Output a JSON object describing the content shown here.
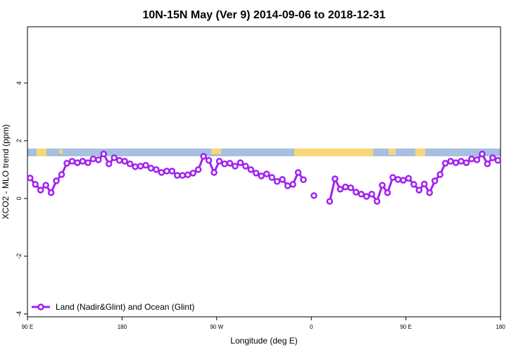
{
  "chart_data": {
    "type": "line",
    "title": "10N-15N May (Ver 9)   2014-09-06 to 2018-12-31",
    "x_label": "Longitude (deg E)",
    "y_label": "XCO2 - MLO trend (ppm)",
    "x": [
      92.5,
      97.5,
      102.5,
      107.5,
      112.5,
      117.5,
      122.5,
      127.5,
      132.5,
      137.5,
      142.5,
      147.5,
      152.5,
      157.5,
      162.5,
      167.5,
      172.5,
      177.5,
      182.5,
      187.5,
      192.5,
      197.5,
      202.5,
      207.5,
      212.5,
      217.5,
      222.5,
      227.5,
      232.5,
      237.5,
      242.5,
      247.5,
      252.5,
      257.5,
      262.5,
      267.5,
      272.5,
      277.5,
      282.5,
      287.5,
      292.5,
      297.5,
      302.5,
      307.5,
      312.5,
      317.5,
      322.5,
      327.5,
      332.5,
      337.5,
      342.5,
      347.5,
      352.5,
      357.5,
      362.5,
      367.5,
      372.5,
      377.5,
      382.5,
      387.5,
      392.5,
      397.5,
      402.5,
      407.5,
      412.5,
      417.5,
      422.5,
      427.5,
      432.5,
      437.5,
      442.5,
      447.5,
      452.5,
      457.5,
      462.5,
      467.5,
      472.5,
      477.5,
      482.5,
      487.5,
      492.5,
      497.5,
      502.5,
      507.5,
      512.5,
      517.5,
      522.5,
      527.5,
      532.5,
      537.5
    ],
    "series": [
      {
        "name": "Land (Nadir&Glint) and Ocean (Glint)",
        "color": "#a020f0",
        "values": [
          0.71,
          0.49,
          0.29,
          0.46,
          0.2,
          0.61,
          0.83,
          1.22,
          1.29,
          1.24,
          1.29,
          1.24,
          1.37,
          1.34,
          1.54,
          1.2,
          1.41,
          1.32,
          1.29,
          1.2,
          1.1,
          1.12,
          1.15,
          1.05,
          1.0,
          0.9,
          0.95,
          0.95,
          0.8,
          0.8,
          0.82,
          0.88,
          1.0,
          1.46,
          1.32,
          0.9,
          1.29,
          1.2,
          1.22,
          1.12,
          1.24,
          1.12,
          1.0,
          0.88,
          0.78,
          0.85,
          0.73,
          0.59,
          0.66,
          0.44,
          0.49,
          0.9,
          0.65,
          null,
          0.1,
          null,
          null,
          -0.1,
          0.68,
          0.32,
          0.4,
          0.37,
          0.22,
          0.15,
          0.07,
          0.15,
          -0.1,
          0.46,
          0.2,
          0.73,
          0.66,
          0.63,
          0.7,
          0.49,
          0.29,
          0.5,
          0.2,
          0.61,
          0.83,
          1.22,
          1.29,
          1.24,
          1.29,
          1.24,
          1.37,
          1.34,
          1.54,
          1.2,
          1.41,
          1.32
        ]
      }
    ],
    "xlim": [
      90,
      540
    ],
    "xticks": [
      {
        "value": 90,
        "label": "90 E"
      },
      180,
      {
        "value": 270,
        "label": "90 W"
      },
      {
        "value": 360,
        "label": "0"
      },
      {
        "value": 450,
        "label": "90 E"
      },
      {
        "value": 540,
        "label": "180"
      }
    ],
    "ylim": [
      -4.1,
      5.95
    ],
    "yticks": [
      -4,
      -2,
      0,
      2,
      4
    ],
    "legend": "bottom-left"
  }
}
